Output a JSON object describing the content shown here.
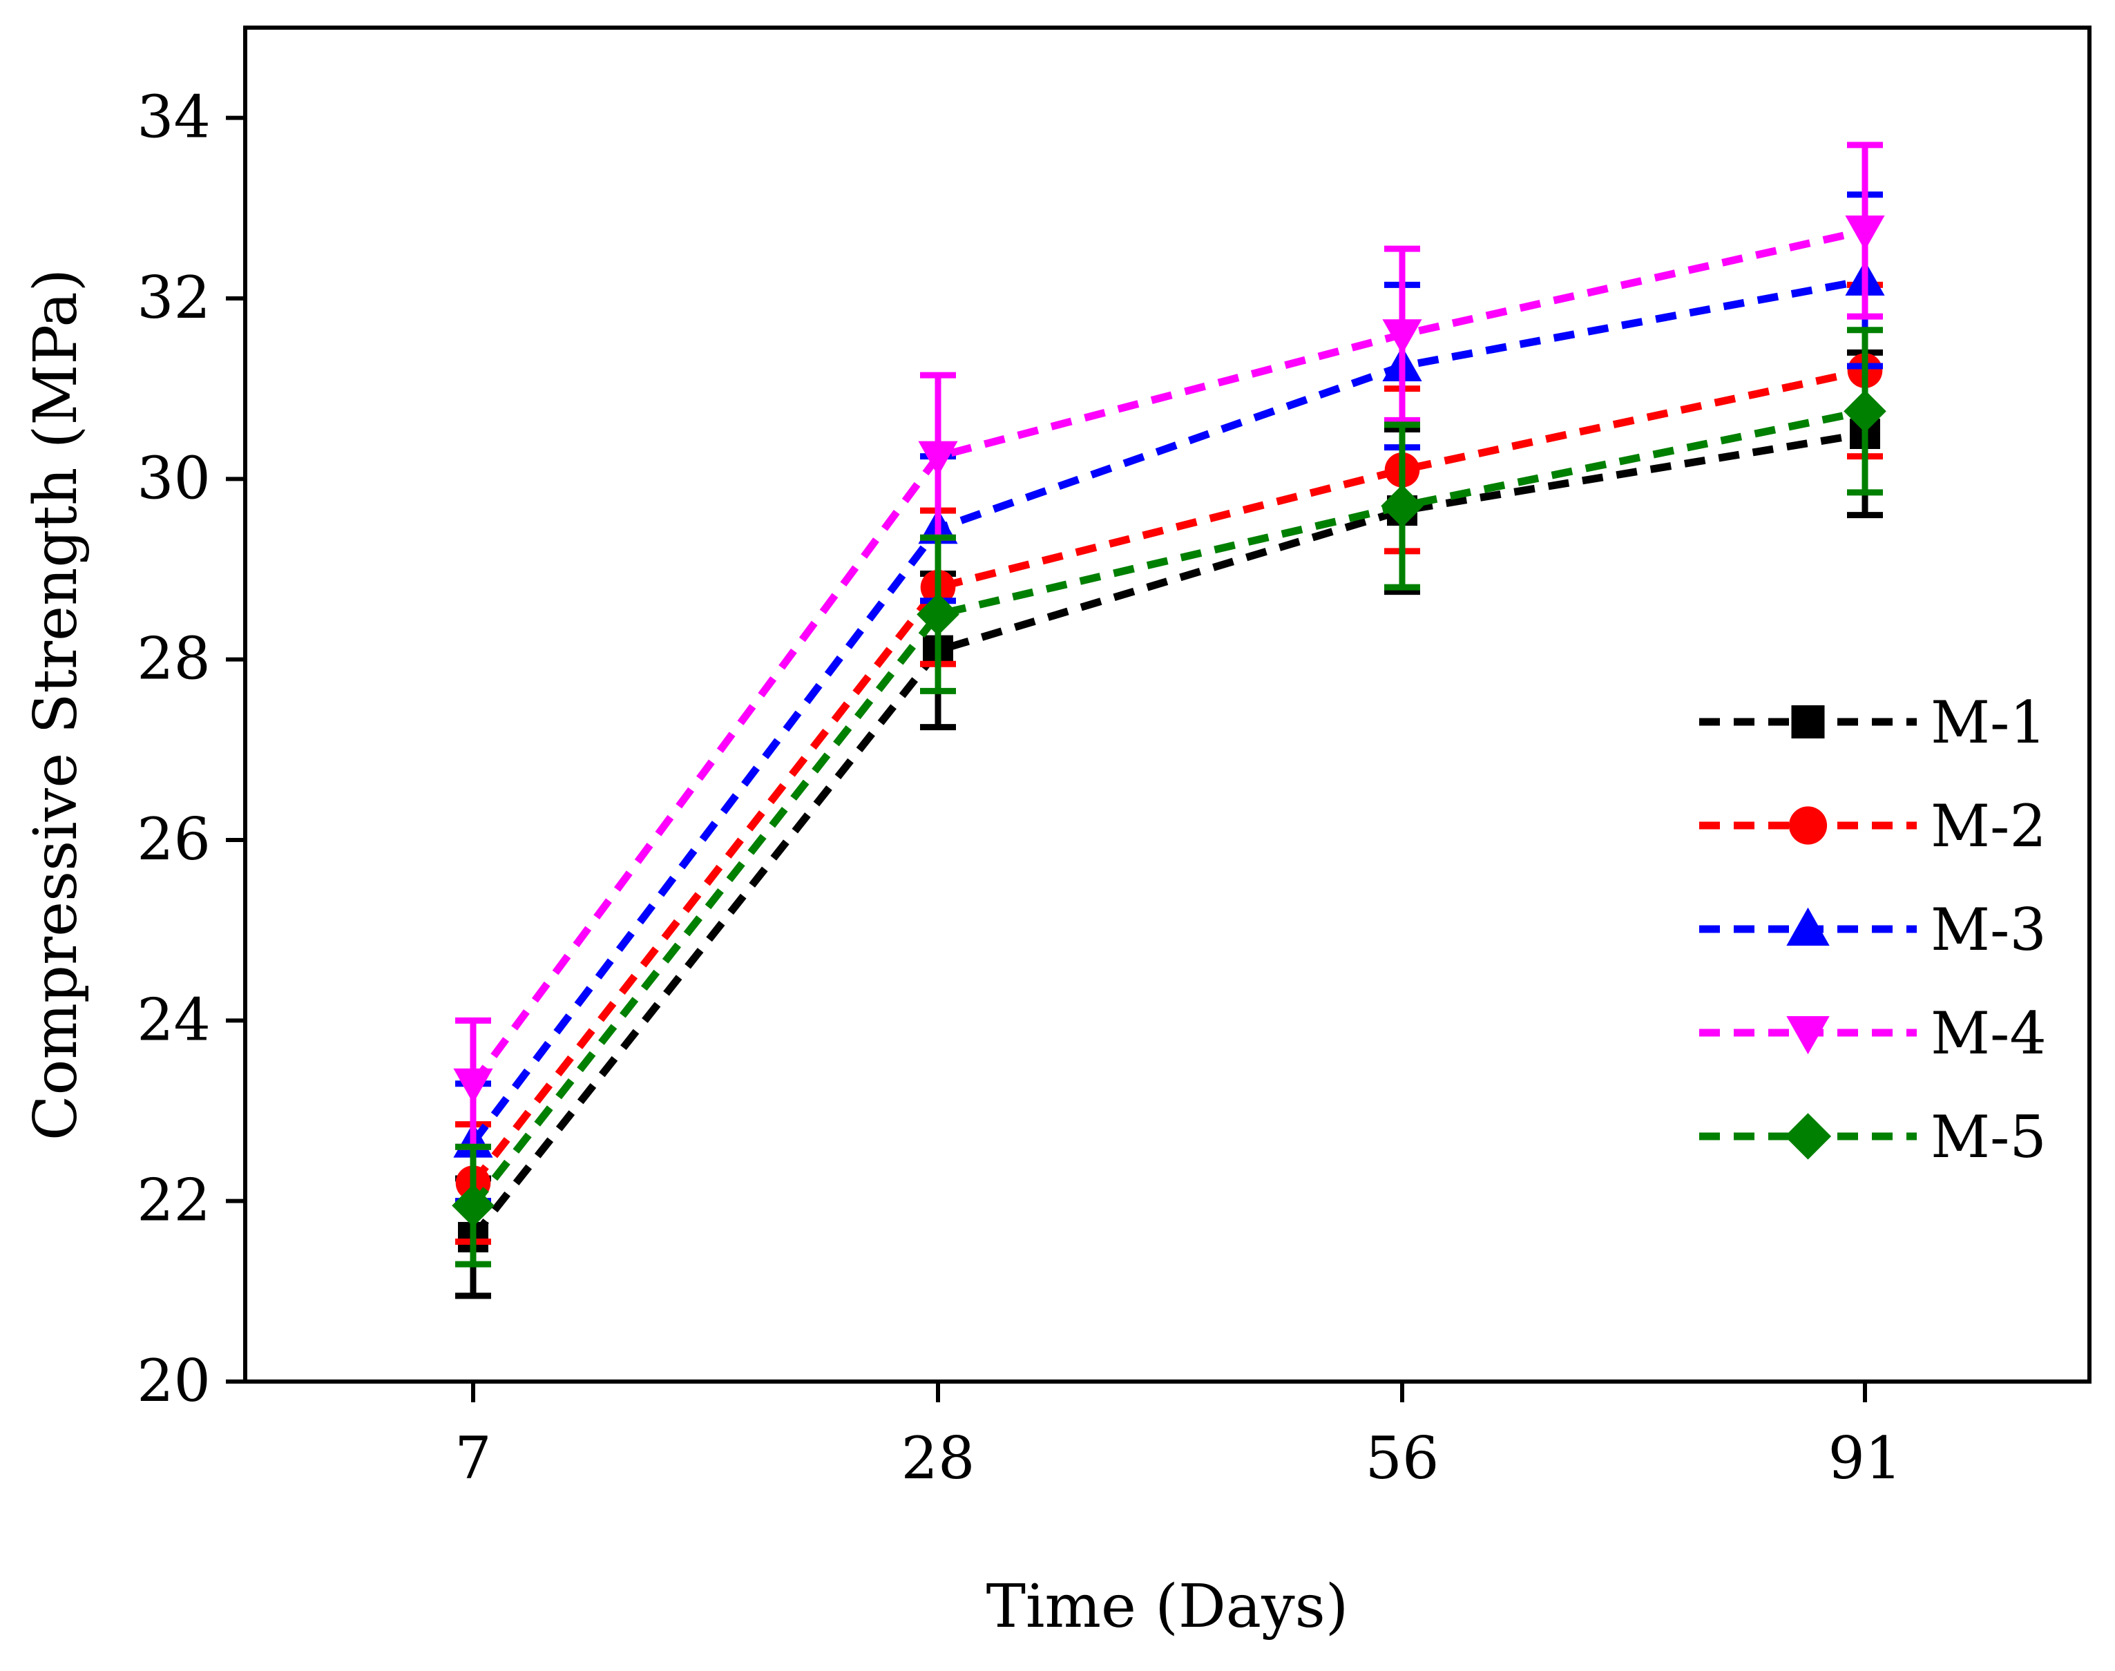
{
  "chart_data": {
    "type": "line",
    "title": "",
    "xlabel": "Time (Days)",
    "ylabel": "Compressive Strength (MPa)",
    "categories": [
      "7",
      "28",
      "56",
      "91"
    ],
    "ylim": [
      20,
      35
    ],
    "yticks": [
      20,
      22,
      24,
      26,
      28,
      30,
      32,
      34
    ],
    "yticklabels": [
      "20",
      "22",
      "24",
      "26",
      "28",
      "30",
      "32",
      "34"
    ],
    "legend_position": "right",
    "series": [
      {
        "name": "M-1",
        "color": "#000000",
        "marker": "square",
        "values": [
          21.6,
          28.1,
          29.65,
          30.5
        ],
        "errors": [
          0.65,
          0.85,
          0.9,
          0.9
        ]
      },
      {
        "name": "M-2",
        "color": "#ff0000",
        "marker": "circle",
        "values": [
          22.2,
          28.8,
          30.1,
          31.2
        ],
        "errors": [
          0.65,
          0.85,
          0.9,
          0.95
        ]
      },
      {
        "name": "M-3",
        "color": "#0000ff",
        "marker": "triangle-up",
        "values": [
          22.65,
          29.45,
          31.25,
          32.2
        ],
        "errors": [
          0.65,
          0.8,
          0.9,
          0.95
        ]
      },
      {
        "name": "M-4",
        "color": "#ff00ff",
        "marker": "triangle-down",
        "values": [
          23.3,
          30.25,
          31.6,
          32.75
        ],
        "errors": [
          0.7,
          0.9,
          0.95,
          0.95
        ]
      },
      {
        "name": "M-5",
        "color": "#008000",
        "marker": "diamond",
        "values": [
          21.95,
          28.5,
          29.7,
          30.75
        ],
        "errors": [
          0.65,
          0.85,
          0.9,
          0.9
        ]
      }
    ]
  }
}
